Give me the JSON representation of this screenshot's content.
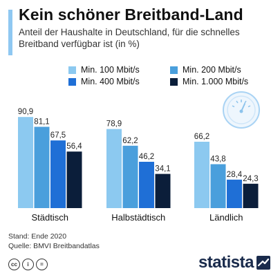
{
  "header": {
    "title": "Kein schöner Breitband-Land",
    "subtitle": "Anteil der Haushalte in Deutschland, für die schnelles Breitband verfügbar ist (in %)"
  },
  "colors": {
    "accent": "#8fc8f2",
    "series": [
      "#8cc9f0",
      "#4a9fdc",
      "#1f6fd6",
      "#0b1e3a"
    ]
  },
  "chart_data": {
    "type": "bar",
    "categories": [
      "Städtisch",
      "Halbstädtisch",
      "Ländlich"
    ],
    "series": [
      {
        "name": "Min. 100 Mbit/s",
        "values": [
          90.9,
          78.9,
          66.2
        ],
        "labels": [
          "90,9",
          "78,9",
          "66,2"
        ]
      },
      {
        "name": "Min. 200 Mbit/s",
        "values": [
          81.1,
          62.2,
          43.8
        ],
        "labels": [
          "81,1",
          "62,2",
          "43,8"
        ]
      },
      {
        "name": "Min. 400 Mbit/s",
        "values": [
          67.5,
          46.2,
          28.4
        ],
        "labels": [
          "67,5",
          "46,2",
          "28,4"
        ]
      },
      {
        "name": "Min. 1.000 Mbit/s",
        "values": [
          56.4,
          34.1,
          24.3
        ],
        "labels": [
          "56,4",
          "34,1",
          "24,3"
        ]
      }
    ],
    "ylim": [
      0,
      100
    ],
    "grid": false,
    "legend_position": "top"
  },
  "footer": {
    "stand": "Stand: Ende 2020",
    "quelle": "Quelle: BMVI Breitbandatlas",
    "brand": "statista"
  },
  "icons": {
    "license": [
      "cc-icon",
      "by-icon",
      "nd-icon"
    ],
    "decoration": "speedometer-icon"
  }
}
